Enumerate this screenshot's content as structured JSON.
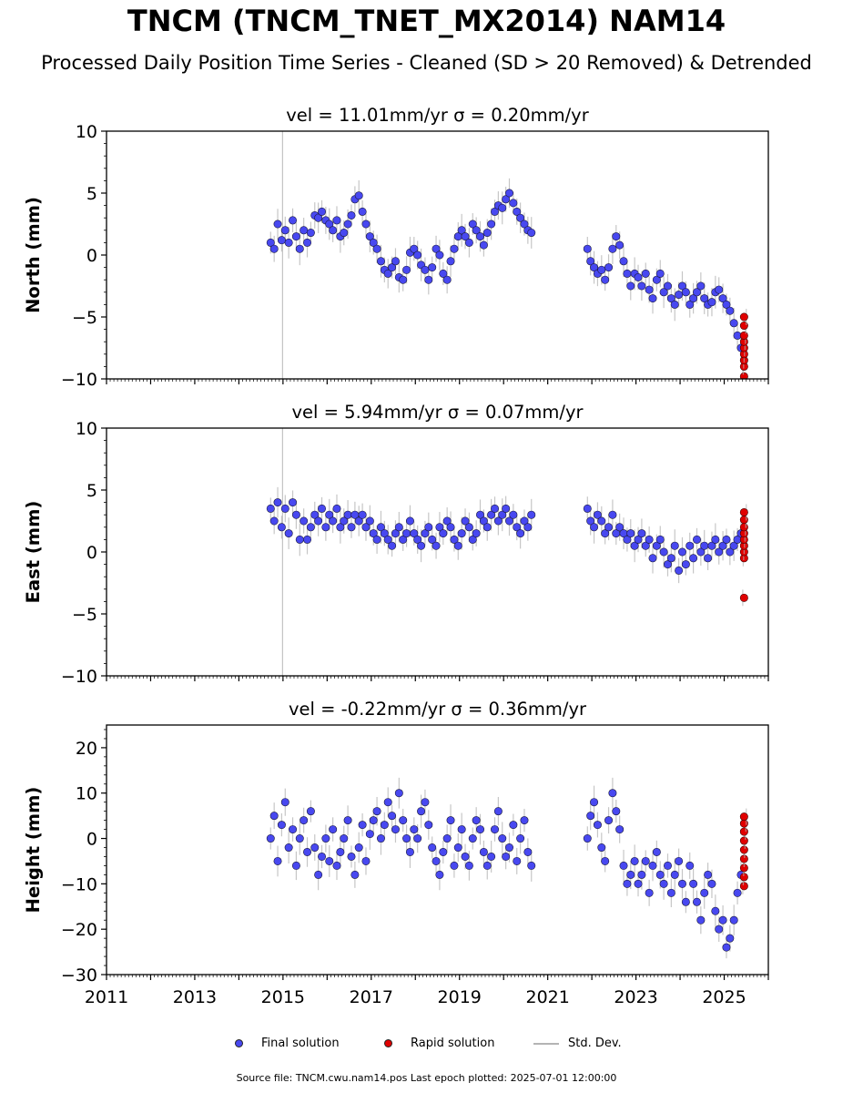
{
  "header": {
    "title": "TNCM (TNCM_TNET_MX2014) NAM14",
    "subtitle": "Processed Daily Position Time Series - Cleaned (SD > 20 Removed) & Detrended"
  },
  "legend": {
    "final_label": "Final solution",
    "rapid_label": "Rapid solution",
    "std_label": "Std. Dev."
  },
  "footer": {
    "source": "Source file: TNCM.cwu.nam14.pos  Last epoch plotted: 2025-07-01 12:00:00"
  },
  "colors": {
    "final": "#4848f0",
    "rapid": "#e00000",
    "std_dev": "#b4b4b4"
  },
  "chart_data": [
    {
      "type": "scatter",
      "title": "vel = 11.01mm/yr   σ = 0.20mm/yr",
      "ylabel": "North (mm)",
      "xlim": [
        2011.0,
        2026.0
      ],
      "ylim": [
        -10,
        10
      ],
      "yticks": [
        -10,
        -5,
        0,
        5,
        10
      ],
      "xticks": [
        2011,
        2013,
        2015,
        2017,
        2019,
        2021,
        2023,
        2025
      ],
      "grid": false,
      "series": [
        {
          "name": "Final solution",
          "x": [
            2014.72,
            2014.8,
            2014.88,
            2014.97,
            2015.05,
            2015.13,
            2015.22,
            2015.3,
            2015.38,
            2015.47,
            2015.55,
            2015.63,
            2015.72,
            2015.8,
            2015.88,
            2015.97,
            2016.05,
            2016.13,
            2016.22,
            2016.3,
            2016.38,
            2016.47,
            2016.55,
            2016.63,
            2016.72,
            2016.8,
            2016.88,
            2016.97,
            2017.05,
            2017.13,
            2017.22,
            2017.3,
            2017.38,
            2017.47,
            2017.55,
            2017.63,
            2017.72,
            2017.8,
            2017.88,
            2017.97,
            2018.05,
            2018.13,
            2018.22,
            2018.3,
            2018.38,
            2018.47,
            2018.55,
            2018.63,
            2018.72,
            2018.8,
            2018.88,
            2018.97,
            2019.05,
            2019.13,
            2019.22,
            2019.3,
            2019.38,
            2019.47,
            2019.55,
            2019.63,
            2019.72,
            2019.8,
            2019.88,
            2019.97,
            2020.05,
            2020.13,
            2020.22,
            2020.3,
            2020.38,
            2020.47,
            2020.55,
            2020.63,
            2021.9,
            2021.97,
            2022.05,
            2022.13,
            2022.22,
            2022.3,
            2022.38,
            2022.47,
            2022.55,
            2022.63,
            2022.72,
            2022.8,
            2022.88,
            2022.97,
            2023.05,
            2023.13,
            2023.22,
            2023.3,
            2023.38,
            2023.47,
            2023.55,
            2023.63,
            2023.72,
            2023.8,
            2023.88,
            2023.97,
            2024.05,
            2024.13,
            2024.22,
            2024.3,
            2024.38,
            2024.47,
            2024.55,
            2024.63,
            2024.72,
            2024.8,
            2024.88,
            2024.97,
            2025.05,
            2025.13,
            2025.22,
            2025.3,
            2025.38
          ],
          "y": [
            1.0,
            0.5,
            2.5,
            1.2,
            2.0,
            1.0,
            2.8,
            1.5,
            0.5,
            2.0,
            1.0,
            1.8,
            3.2,
            3.0,
            3.5,
            2.8,
            2.5,
            2.0,
            2.8,
            1.5,
            1.8,
            2.5,
            3.2,
            4.5,
            4.8,
            3.5,
            2.5,
            1.5,
            1.0,
            0.5,
            -0.5,
            -1.2,
            -1.5,
            -1.0,
            -0.5,
            -1.8,
            -2.0,
            -1.2,
            0.2,
            0.5,
            0.0,
            -0.8,
            -1.2,
            -2.0,
            -1.0,
            0.5,
            0.0,
            -1.5,
            -2.0,
            -0.5,
            0.5,
            1.5,
            2.0,
            1.5,
            1.0,
            2.5,
            2.0,
            1.5,
            0.8,
            1.8,
            2.5,
            3.5,
            4.0,
            3.8,
            4.5,
            5.0,
            4.2,
            3.5,
            3.0,
            2.5,
            2.0,
            1.8,
            0.5,
            -0.5,
            -1.0,
            -1.5,
            -1.2,
            -2.0,
            -1.0,
            0.5,
            1.5,
            0.8,
            -0.5,
            -1.5,
            -2.5,
            -1.5,
            -1.8,
            -2.5,
            -1.5,
            -2.8,
            -3.5,
            -2.0,
            -1.5,
            -3.0,
            -2.5,
            -3.5,
            -4.0,
            -3.2,
            -2.5,
            -3.0,
            -4.0,
            -3.5,
            -3.0,
            -2.5,
            -3.5,
            -4.0,
            -3.8,
            -3.0,
            -2.8,
            -3.5,
            -4.0,
            -4.5,
            -5.5,
            -6.5,
            -7.5
          ]
        },
        {
          "name": "Rapid solution",
          "x": [
            2025.42,
            2025.43,
            2025.44,
            2025.45,
            2025.46,
            2025.47,
            2025.48,
            2025.49,
            2025.5
          ],
          "y": [
            -9.8,
            -9.0,
            -8.5,
            -8.0,
            -7.5,
            -7.0,
            -6.5,
            -5.7,
            -5.0
          ]
        }
      ]
    },
    {
      "type": "scatter",
      "title": "vel = 5.94mm/yr   σ = 0.07mm/yr",
      "ylabel": "East (mm)",
      "xlim": [
        2011.0,
        2026.0
      ],
      "ylim": [
        -10,
        10
      ],
      "yticks": [
        -10,
        -5,
        0,
        5,
        10
      ],
      "xticks": [
        2011,
        2013,
        2015,
        2017,
        2019,
        2021,
        2023,
        2025
      ],
      "grid": false,
      "series": [
        {
          "name": "Final solution",
          "x": [
            2014.72,
            2014.8,
            2014.88,
            2014.97,
            2015.05,
            2015.13,
            2015.22,
            2015.3,
            2015.38,
            2015.47,
            2015.55,
            2015.63,
            2015.72,
            2015.8,
            2015.88,
            2015.97,
            2016.05,
            2016.13,
            2016.22,
            2016.3,
            2016.38,
            2016.47,
            2016.55,
            2016.63,
            2016.72,
            2016.8,
            2016.88,
            2016.97,
            2017.05,
            2017.13,
            2017.22,
            2017.3,
            2017.38,
            2017.47,
            2017.55,
            2017.63,
            2017.72,
            2017.8,
            2017.88,
            2017.97,
            2018.05,
            2018.13,
            2018.22,
            2018.3,
            2018.38,
            2018.47,
            2018.55,
            2018.63,
            2018.72,
            2018.8,
            2018.88,
            2018.97,
            2019.05,
            2019.13,
            2019.22,
            2019.3,
            2019.38,
            2019.47,
            2019.55,
            2019.63,
            2019.72,
            2019.8,
            2019.88,
            2019.97,
            2020.05,
            2020.13,
            2020.22,
            2020.3,
            2020.38,
            2020.47,
            2020.55,
            2020.63,
            2021.9,
            2021.97,
            2022.05,
            2022.13,
            2022.22,
            2022.3,
            2022.38,
            2022.47,
            2022.55,
            2022.63,
            2022.72,
            2022.8,
            2022.88,
            2022.97,
            2023.05,
            2023.13,
            2023.22,
            2023.3,
            2023.38,
            2023.47,
            2023.55,
            2023.63,
            2023.72,
            2023.8,
            2023.88,
            2023.97,
            2024.05,
            2024.13,
            2024.22,
            2024.3,
            2024.38,
            2024.47,
            2024.55,
            2024.63,
            2024.72,
            2024.8,
            2024.88,
            2024.97,
            2025.05,
            2025.13,
            2025.22,
            2025.3,
            2025.38
          ],
          "y": [
            3.5,
            2.5,
            4.0,
            2.0,
            3.5,
            1.5,
            4.0,
            3.0,
            1.0,
            2.5,
            1.0,
            2.0,
            3.0,
            2.5,
            3.5,
            2.0,
            3.0,
            2.5,
            3.5,
            2.0,
            2.5,
            3.0,
            2.0,
            3.0,
            2.5,
            3.0,
            2.0,
            2.5,
            1.5,
            1.0,
            2.0,
            1.5,
            1.0,
            0.5,
            1.5,
            2.0,
            1.0,
            1.5,
            2.5,
            1.5,
            1.0,
            0.5,
            1.5,
            2.0,
            1.0,
            0.5,
            2.0,
            1.5,
            2.5,
            2.0,
            1.0,
            0.5,
            1.5,
            2.5,
            2.0,
            1.0,
            1.5,
            3.0,
            2.5,
            2.0,
            3.0,
            3.5,
            2.5,
            3.0,
            3.5,
            2.5,
            3.0,
            2.0,
            1.5,
            2.5,
            2.0,
            3.0,
            3.5,
            2.5,
            2.0,
            3.0,
            2.5,
            1.5,
            2.0,
            3.0,
            1.5,
            2.0,
            1.5,
            1.0,
            1.5,
            0.5,
            1.0,
            1.5,
            0.5,
            1.0,
            -0.5,
            0.5,
            1.0,
            0.0,
            -1.0,
            -0.5,
            0.5,
            -1.5,
            0.0,
            -1.0,
            0.5,
            -0.5,
            1.0,
            0.0,
            0.5,
            -0.5,
            0.5,
            1.0,
            0.0,
            0.5,
            1.0,
            0.0,
            0.5,
            1.0,
            1.5
          ]
        },
        {
          "name": "Rapid solution",
          "x": [
            2025.42,
            2025.43,
            2025.44,
            2025.45,
            2025.46,
            2025.47,
            2025.48,
            2025.49,
            2025.5
          ],
          "y": [
            -3.7,
            -0.5,
            0.0,
            0.5,
            1.0,
            1.5,
            2.0,
            2.6,
            3.2
          ]
        }
      ]
    },
    {
      "type": "scatter",
      "title": "vel = -0.22mm/yr   σ = 0.36mm/yr",
      "ylabel": "Height (mm)",
      "xlabel": "",
      "xlim": [
        2011.0,
        2026.0
      ],
      "ylim": [
        -30,
        25
      ],
      "yticks": [
        -30,
        -20,
        -10,
        0,
        10,
        20
      ],
      "xticks": [
        2011,
        2013,
        2015,
        2017,
        2019,
        2021,
        2023,
        2025
      ],
      "grid": false,
      "series": [
        {
          "name": "Final solution",
          "x": [
            2014.72,
            2014.8,
            2014.88,
            2014.97,
            2015.05,
            2015.13,
            2015.22,
            2015.3,
            2015.38,
            2015.47,
            2015.55,
            2015.63,
            2015.72,
            2015.8,
            2015.88,
            2015.97,
            2016.05,
            2016.13,
            2016.22,
            2016.3,
            2016.38,
            2016.47,
            2016.55,
            2016.63,
            2016.72,
            2016.8,
            2016.88,
            2016.97,
            2017.05,
            2017.13,
            2017.22,
            2017.3,
            2017.38,
            2017.47,
            2017.55,
            2017.63,
            2017.72,
            2017.8,
            2017.88,
            2017.97,
            2018.05,
            2018.13,
            2018.22,
            2018.3,
            2018.38,
            2018.47,
            2018.55,
            2018.63,
            2018.72,
            2018.8,
            2018.88,
            2018.97,
            2019.05,
            2019.13,
            2019.22,
            2019.3,
            2019.38,
            2019.47,
            2019.55,
            2019.63,
            2019.72,
            2019.8,
            2019.88,
            2019.97,
            2020.05,
            2020.13,
            2020.22,
            2020.3,
            2020.38,
            2020.47,
            2020.55,
            2020.63,
            2021.9,
            2021.97,
            2022.05,
            2022.13,
            2022.22,
            2022.3,
            2022.38,
            2022.47,
            2022.55,
            2022.63,
            2022.72,
            2022.8,
            2022.88,
            2022.97,
            2023.05,
            2023.13,
            2023.22,
            2023.3,
            2023.38,
            2023.47,
            2023.55,
            2023.63,
            2023.72,
            2023.8,
            2023.88,
            2023.97,
            2024.05,
            2024.13,
            2024.22,
            2024.3,
            2024.38,
            2024.47,
            2024.55,
            2024.63,
            2024.72,
            2024.8,
            2024.88,
            2024.97,
            2025.05,
            2025.13,
            2025.22,
            2025.3,
            2025.38
          ],
          "y": [
            0,
            5,
            -5,
            3,
            8,
            -2,
            2,
            -6,
            0,
            4,
            -3,
            6,
            -2,
            -8,
            -4,
            0,
            -5,
            2,
            -6,
            -3,
            0,
            4,
            -4,
            -8,
            -2,
            3,
            -5,
            1,
            4,
            6,
            0,
            3,
            8,
            5,
            2,
            10,
            4,
            0,
            -3,
            2,
            0,
            6,
            8,
            3,
            -2,
            -5,
            -8,
            -3,
            0,
            4,
            -6,
            -2,
            2,
            -4,
            -6,
            0,
            4,
            2,
            -3,
            -6,
            -4,
            2,
            6,
            0,
            -4,
            -2,
            3,
            -5,
            0,
            4,
            -3,
            -6,
            0,
            5,
            8,
            3,
            -2,
            -5,
            4,
            10,
            6,
            2,
            -6,
            -10,
            -8,
            -5,
            -10,
            -8,
            -5,
            -12,
            -6,
            -3,
            -8,
            -10,
            -6,
            -12,
            -8,
            -5,
            -10,
            -14,
            -6,
            -10,
            -14,
            -18,
            -12,
            -8,
            -10,
            -16,
            -20,
            -18,
            -24,
            -22,
            -18,
            -12,
            -8
          ]
        },
        {
          "name": "Rapid solution",
          "x": [
            2025.42,
            2025.43,
            2025.44,
            2025.45,
            2025.46,
            2025.47,
            2025.48,
            2025.49,
            2025.5
          ],
          "y": [
            -10.5,
            -8.5,
            -6.5,
            -4.5,
            -2.5,
            -0.5,
            1.5,
            3.3,
            4.8
          ]
        }
      ]
    }
  ]
}
